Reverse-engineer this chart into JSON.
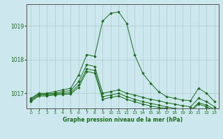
{
  "title": "Graphe pression niveau de la mer (hPa)",
  "bg_color": "#cce8ee",
  "grid_color": "#aacccc",
  "line_color": "#1a6b1a",
  "marker_color": "#1a6b1a",
  "xlim": [
    -0.5,
    23.5
  ],
  "ylim": [
    1016.55,
    1019.65
  ],
  "yticks": [
    1017,
    1018,
    1019
  ],
  "xticks": [
    0,
    1,
    2,
    3,
    4,
    5,
    6,
    7,
    8,
    9,
    10,
    11,
    12,
    13,
    14,
    15,
    16,
    17,
    18,
    19,
    20,
    21,
    22,
    23
  ],
  "series": [
    [
      1016.85,
      1017.0,
      1017.0,
      1017.05,
      1017.1,
      1017.15,
      1017.55,
      1018.15,
      1018.1,
      1019.15,
      1019.38,
      1019.42,
      1019.08,
      1018.15,
      1017.6,
      1017.3,
      1017.05,
      1016.9,
      1016.85,
      1016.8,
      1016.78,
      1017.15,
      1017.0,
      1016.75
    ],
    [
      1016.82,
      1016.98,
      1016.98,
      1017.0,
      1017.05,
      1017.08,
      1017.35,
      1017.85,
      1017.8,
      1017.0,
      1017.05,
      1017.1,
      1017.0,
      1016.95,
      1016.88,
      1016.82,
      1016.78,
      1016.72,
      1016.68,
      1016.63,
      1016.6,
      1016.85,
      1016.75,
      1016.6
    ],
    [
      1016.78,
      1016.95,
      1016.95,
      1016.98,
      1017.0,
      1017.02,
      1017.25,
      1017.72,
      1017.68,
      1016.9,
      1016.95,
      1017.0,
      1016.9,
      1016.82,
      1016.75,
      1016.7,
      1016.65,
      1016.6,
      1016.55,
      1016.52,
      1016.5,
      1016.72,
      1016.65,
      1016.52
    ],
    [
      1016.75,
      1016.92,
      1016.92,
      1016.95,
      1016.97,
      1016.98,
      1017.18,
      1017.65,
      1017.6,
      1016.82,
      1016.88,
      1016.92,
      1016.82,
      1016.75,
      1016.68,
      1016.62,
      1016.58,
      1016.55,
      1016.52,
      1016.48,
      1016.45,
      1016.68,
      1016.6,
      1016.48
    ]
  ]
}
